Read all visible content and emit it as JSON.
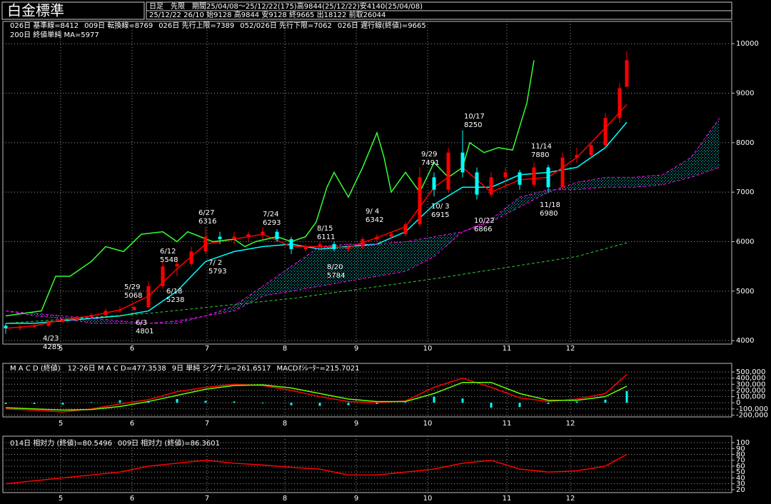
{
  "chart_data": [
    {
      "type": "candlestick",
      "title": "白金標準",
      "subtitle": [
        "日足　先限　期間25/04/08～25/12/22(175)高9844(25/12/22)安4140(25/04/08)",
        "25/12/22 26/10 始9128 高9844 安9128 終9665 出18122 前取26044"
      ],
      "x": [
        0,
        4,
        8,
        12,
        16,
        20,
        24,
        28,
        32,
        36,
        40,
        44,
        48,
        52,
        56,
        60,
        64,
        68,
        72,
        76,
        80,
        84,
        88,
        92,
        96,
        100,
        104,
        108,
        112,
        116,
        120,
        124,
        128,
        132,
        136,
        140,
        144,
        148,
        152,
        156,
        160,
        164,
        168,
        172,
        174
      ],
      "open": [
        4300,
        4250,
        4280,
        4300,
        4380,
        4420,
        4480,
        4520,
        4600,
        4620,
        4680,
        5100,
        5500,
        5550,
        5800,
        6100,
        6050,
        6100,
        6150,
        6200,
        6050,
        5850,
        5900,
        5950,
        5850,
        5900,
        6050,
        6100,
        6150,
        6350,
        7300,
        7050,
        7800,
        7400,
        6950,
        7300,
        7400,
        7150,
        7500,
        7100,
        7700,
        7750,
        7950,
        8500,
        9128
      ],
      "high": [
        4350,
        4320,
        4350,
        4400,
        4450,
        4500,
        4560,
        4650,
        4700,
        4700,
        5200,
        5600,
        5700,
        5900,
        6300,
        6200,
        6200,
        6200,
        6300,
        6250,
        6100,
        5950,
        6000,
        6000,
        5950,
        6100,
        6150,
        6200,
        6400,
        7500,
        7400,
        7900,
        8250,
        7500,
        7400,
        7500,
        7450,
        7600,
        7550,
        7800,
        7900,
        8000,
        8600,
        9200,
        9844
      ],
      "low": [
        4140,
        4200,
        4250,
        4285,
        4350,
        4380,
        4450,
        4500,
        4560,
        4600,
        4650,
        5050,
        5300,
        5500,
        5750,
        5950,
        5950,
        6000,
        6050,
        6000,
        5750,
        5800,
        5850,
        5800,
        5800,
        5850,
        6000,
        6050,
        6100,
        6300,
        6915,
        7000,
        7300,
        6850,
        6900,
        7100,
        7050,
        7100,
        6980,
        7050,
        7600,
        7700,
        7900,
        8400,
        9128
      ],
      "close": [
        4250,
        4280,
        4300,
        4380,
        4420,
        4480,
        4520,
        4600,
        4620,
        4680,
        5100,
        5500,
        5550,
        5800,
        6100,
        6050,
        6100,
        6150,
        6200,
        6050,
        5850,
        5900,
        5950,
        5850,
        5900,
        6050,
        6100,
        6150,
        6350,
        7300,
        7050,
        7800,
        7400,
        6950,
        7300,
        7400,
        7150,
        7500,
        7100,
        7700,
        7750,
        7950,
        8500,
        9100,
        9665
      ],
      "up_color": "#ff0000",
      "down_color": "#00ffff",
      "cloud_color": "#00ffff",
      "series": [
        {
          "name": "026日 基準線=8412",
          "color": "#00ffff",
          "x": [
            0,
            8,
            16,
            24,
            32,
            40,
            48,
            56,
            64,
            72,
            80,
            88,
            96,
            104,
            112,
            120,
            128,
            136,
            144,
            152,
            160,
            168,
            174
          ],
          "values": [
            4350,
            4350,
            4400,
            4450,
            4500,
            4600,
            5000,
            5600,
            5800,
            5900,
            5950,
            5850,
            5900,
            5950,
            6200,
            6750,
            7100,
            7100,
            7350,
            7400,
            7500,
            7900,
            8412
          ]
        },
        {
          "name": "009日 転換線=8769",
          "color": "#ff0000",
          "x": [
            0,
            8,
            16,
            24,
            32,
            40,
            48,
            56,
            64,
            72,
            80,
            88,
            96,
            104,
            112,
            120,
            128,
            136,
            144,
            152,
            160,
            168,
            174
          ],
          "values": [
            4250,
            4300,
            4420,
            4500,
            4620,
            4900,
            5450,
            5950,
            6050,
            6150,
            5900,
            5900,
            5880,
            6080,
            6300,
            7100,
            7500,
            7000,
            7250,
            7300,
            7700,
            8300,
            8769
          ]
        },
        {
          "name": "026日 先行上限=7389",
          "color": "#ff00ff",
          "style": "dashed",
          "x": [
            0,
            8,
            16,
            24,
            32,
            40,
            48,
            56,
            64,
            72,
            80,
            88,
            96,
            104,
            112,
            120,
            128,
            136,
            144,
            152,
            160,
            168,
            176,
            184,
            192,
            200
          ],
          "values": [
            4600,
            4550,
            4500,
            4450,
            4400,
            4350,
            4400,
            4500,
            4700,
            5100,
            5500,
            5900,
            5950,
            5950,
            6000,
            6100,
            6200,
            6400,
            6700,
            7000,
            7200,
            7300,
            7300,
            7350,
            7700,
            8500
          ]
        },
        {
          "name": "052/026日 先行下限=7062",
          "color": "#ff00ff",
          "style": "dashed",
          "x": [
            0,
            8,
            16,
            24,
            32,
            40,
            48,
            56,
            64,
            72,
            80,
            88,
            96,
            104,
            112,
            120,
            128,
            136,
            144,
            152,
            160,
            168,
            176,
            184,
            192,
            200
          ],
          "values": [
            4600,
            4500,
            4450,
            4350,
            4350,
            4350,
            4350,
            4500,
            4600,
            4900,
            5000,
            5100,
            5200,
            5300,
            5400,
            5700,
            6200,
            6450,
            6900,
            7050,
            7050,
            7100,
            7100,
            7150,
            7300,
            7500
          ]
        },
        {
          "name": "026日 遅行線(終値)=9665",
          "color": "#33ff33",
          "x": [
            0,
            10,
            14,
            18,
            24,
            28,
            33,
            38,
            44,
            48,
            51,
            58,
            64,
            67,
            70,
            76,
            80,
            84,
            87,
            90,
            92,
            96,
            100,
            104,
            106,
            108,
            112,
            116,
            120,
            124,
            128,
            130,
            134,
            138,
            142,
            146,
            148
          ],
          "values": [
            4500,
            4600,
            5300,
            5300,
            5600,
            5900,
            5800,
            6150,
            6200,
            6000,
            6200,
            6000,
            6050,
            5900,
            6000,
            6100,
            6000,
            6100,
            6400,
            7100,
            7400,
            6900,
            7500,
            8200,
            7700,
            7000,
            7400,
            7000,
            7600,
            7300,
            7500,
            8000,
            7800,
            7900,
            7850,
            8800,
            9665
          ]
        },
        {
          "name": "200日 終値単純 MA=5977",
          "color": "#33cc33",
          "style": "dashed",
          "x": [
            0,
            40,
            80,
            120,
            160,
            174
          ],
          "values": [
            4350,
            4550,
            4850,
            5250,
            5700,
            5977
          ]
        }
      ],
      "annotations": [
        {
          "date": "4/23",
          "price": "4285",
          "color": "#00ffff"
        },
        {
          "date": "5/29",
          "price": "5068",
          "color": "#ff3333"
        },
        {
          "date": "6/3",
          "price": "4801",
          "color": "#00ffff"
        },
        {
          "date": "6/12",
          "price": "5548",
          "color": "#ff3333"
        },
        {
          "date": "6/18",
          "price": "5238",
          "color": "#00ffff"
        },
        {
          "date": "6/27",
          "price": "6316",
          "color": "#ff3333"
        },
        {
          "date": "7/ 2",
          "price": "5793",
          "color": "#00ffff"
        },
        {
          "date": "7/24",
          "price": "6293",
          "color": "#ff3333"
        },
        {
          "date": "8/15",
          "price": "6111",
          "color": "#ff3333"
        },
        {
          "date": "8/20",
          "price": "5784",
          "color": "#00ffff"
        },
        {
          "date": "9/ 4",
          "price": "6342",
          "color": "#ff3333"
        },
        {
          "date": "9/29",
          "price": "7491",
          "color": "#ff3333"
        },
        {
          "date": "10/ 3",
          "price": "6915",
          "color": "#00ffff"
        },
        {
          "date": "10/17",
          "price": "8250",
          "color": "#ff3333"
        },
        {
          "date": "10/22",
          "price": "6866",
          "color": "#00ffff"
        },
        {
          "date": "11/14",
          "price": "7880",
          "color": "#ff3333"
        },
        {
          "date": "11/18",
          "price": "6980",
          "color": "#00ffff"
        }
      ],
      "xlim": [
        0,
        203
      ],
      "xticks": [
        {
          "value": 15.4,
          "label": "5"
        },
        {
          "value": 35.4,
          "label": "6"
        },
        {
          "value": 56.4,
          "label": "7"
        },
        {
          "value": 78.2,
          "label": "8"
        },
        {
          "value": 98.2,
          "label": "9"
        },
        {
          "value": 118.2,
          "label": "10"
        },
        {
          "value": 140.4,
          "label": "11"
        },
        {
          "value": 158.2,
          "label": "12"
        }
      ],
      "ylim": [
        3930,
        10450
      ],
      "yticks": [
        4000,
        5000,
        6000,
        7000,
        8000,
        9000,
        10000
      ],
      "grid": true
    },
    {
      "type": "macd",
      "title": "M A C D (終値)",
      "x": [
        0,
        8,
        16,
        24,
        32,
        40,
        48,
        56,
        64,
        72,
        80,
        88,
        96,
        104,
        112,
        120,
        128,
        136,
        144,
        152,
        160,
        168,
        174
      ],
      "series": [
        {
          "name": "12-26日 M A C D=477.3538",
          "color": "#ff0000",
          "values": [
            -100000,
            -120000,
            -150000,
            -100000,
            -20000,
            50000,
            180000,
            250000,
            300000,
            280000,
            200000,
            100000,
            20000,
            0,
            30000,
            250000,
            400000,
            250000,
            80000,
            20000,
            60000,
            150000,
            460000
          ]
        },
        {
          "name": "9日 単純 シグナル=261.6517",
          "color": "#66ff00",
          "values": [
            -80000,
            -100000,
            -120000,
            -110000,
            -60000,
            20000,
            120000,
            220000,
            280000,
            290000,
            240000,
            150000,
            60000,
            20000,
            20000,
            150000,
            330000,
            330000,
            150000,
            40000,
            40000,
            100000,
            270000
          ]
        },
        {
          "name": "MACDｵｼﾚｰﾀｰ=215.7021",
          "color": "#00ffff",
          "style": "bar",
          "values": [
            -20000,
            -20000,
            -30000,
            10000,
            40000,
            30000,
            60000,
            30000,
            20000,
            -10000,
            -40000,
            -50000,
            -40000,
            -20000,
            10000,
            100000,
            70000,
            -80000,
            -70000,
            -20000,
            20000,
            50000,
            190000
          ]
        }
      ],
      "xlim": [
        0,
        203
      ],
      "xticks": [
        {
          "value": 15.4,
          "label": "5"
        },
        {
          "value": 35.4,
          "label": "6"
        },
        {
          "value": 56.4,
          "label": "7"
        },
        {
          "value": 78.2,
          "label": "8"
        },
        {
          "value": 98.2,
          "label": "9"
        },
        {
          "value": 118.2,
          "label": "10"
        },
        {
          "value": 140.4,
          "label": "11"
        },
        {
          "value": 158.2,
          "label": "12"
        }
      ],
      "ylim": [
        -230000,
        640000
      ],
      "yticks": [
        {
          "value": 500000,
          "label": "500,000"
        },
        {
          "value": 400000,
          "label": "400,000"
        },
        {
          "value": 300000,
          "label": "300,000"
        },
        {
          "value": 200000,
          "label": "200,000"
        },
        {
          "value": 100000,
          "label": "100,000"
        },
        0,
        {
          "value": -100000,
          "label": "-100,000"
        },
        {
          "value": -200000,
          "label": "-200,000"
        }
      ],
      "grid": true
    },
    {
      "type": "rsi",
      "x": [
        0,
        8,
        16,
        24,
        32,
        40,
        48,
        56,
        64,
        72,
        80,
        88,
        96,
        104,
        112,
        120,
        128,
        136,
        144,
        152,
        160,
        168,
        174
      ],
      "series": [
        {
          "name": "014日 相対力 (終値)=80.5496",
          "color": "#ff0000",
          "values": [
            30,
            35,
            40,
            45,
            50,
            60,
            65,
            70,
            65,
            62,
            58,
            55,
            45,
            45,
            50,
            55,
            65,
            70,
            55,
            50,
            52,
            60,
            80
          ]
        },
        {
          "name": "009日 相対力 (終値)=86.3601",
          "color": "#00ffff"
        }
      ],
      "xlim": [
        0,
        203
      ],
      "xticks": [
        {
          "value": 15.4,
          "label": "5"
        },
        {
          "value": 35.4,
          "label": "6"
        },
        {
          "value": 56.4,
          "label": "7"
        },
        {
          "value": 78.2,
          "label": "8"
        },
        {
          "value": 98.2,
          "label": "9"
        },
        {
          "value": 118.2,
          "label": "10"
        },
        {
          "value": 140.4,
          "label": "11"
        },
        {
          "value": 158.2,
          "label": "12"
        }
      ],
      "ylim": [
        15,
        111
      ],
      "yticks": [
        100,
        90,
        80,
        70,
        60,
        50,
        40,
        30,
        20
      ],
      "grid": true
    }
  ]
}
